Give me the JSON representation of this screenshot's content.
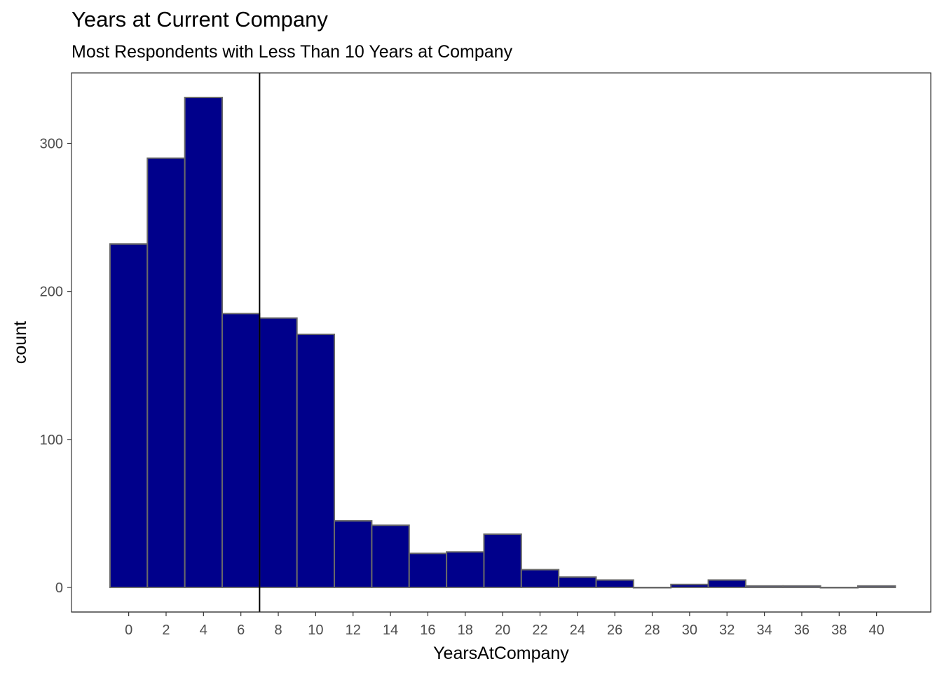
{
  "chart_data": {
    "type": "histogram",
    "title": "Years at Current Company",
    "subtitle": "Most Respondents with Less Than 10 Years at Company",
    "xlabel": "YearsAtCompany",
    "ylabel": "count",
    "binwidth": 2,
    "bins": [
      {
        "x_start": -1,
        "x_end": 1,
        "count": 232
      },
      {
        "x_start": 1,
        "x_end": 3,
        "count": 290
      },
      {
        "x_start": 3,
        "x_end": 5,
        "count": 331
      },
      {
        "x_start": 5,
        "x_end": 7,
        "count": 185
      },
      {
        "x_start": 7,
        "x_end": 9,
        "count": 182
      },
      {
        "x_start": 9,
        "x_end": 11,
        "count": 171
      },
      {
        "x_start": 11,
        "x_end": 13,
        "count": 45
      },
      {
        "x_start": 13,
        "x_end": 15,
        "count": 42
      },
      {
        "x_start": 15,
        "x_end": 17,
        "count": 23
      },
      {
        "x_start": 17,
        "x_end": 19,
        "count": 24
      },
      {
        "x_start": 19,
        "x_end": 21,
        "count": 36
      },
      {
        "x_start": 21,
        "x_end": 23,
        "count": 12
      },
      {
        "x_start": 23,
        "x_end": 25,
        "count": 7
      },
      {
        "x_start": 25,
        "x_end": 27,
        "count": 5
      },
      {
        "x_start": 27,
        "x_end": 29,
        "count": 0
      },
      {
        "x_start": 29,
        "x_end": 31,
        "count": 2
      },
      {
        "x_start": 31,
        "x_end": 33,
        "count": 5
      },
      {
        "x_start": 33,
        "x_end": 35,
        "count": 1
      },
      {
        "x_start": 35,
        "x_end": 37,
        "count": 1
      },
      {
        "x_start": 37,
        "x_end": 39,
        "count": 0
      },
      {
        "x_start": 39,
        "x_end": 41,
        "count": 1
      }
    ],
    "x_ticks": [
      0,
      2,
      4,
      6,
      8,
      10,
      12,
      14,
      16,
      18,
      20,
      22,
      24,
      26,
      28,
      30,
      32,
      34,
      36,
      38,
      40
    ],
    "y_ticks": [
      0,
      100,
      200,
      300
    ],
    "xlim": [
      -3.06,
      42.9
    ],
    "ylim": [
      -16.6,
      347.6
    ],
    "reference_line_x": 7.0,
    "bar_fill": "#00008B",
    "bar_outline": "#696969",
    "reference_line_color": "#000000",
    "grid": false
  }
}
